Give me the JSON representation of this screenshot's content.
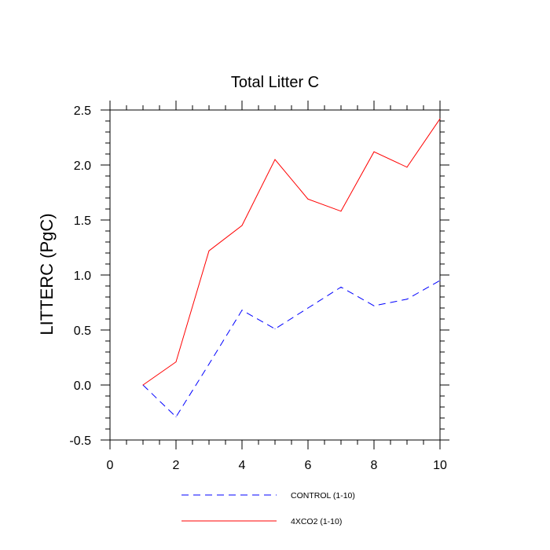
{
  "chart_data": {
    "type": "line",
    "title": "Total Litter C",
    "xlabel": "",
    "ylabel": "LITTERC  (PgC)",
    "xlim": [
      0,
      10
    ],
    "ylim": [
      -0.5,
      2.5
    ],
    "x_ticks": [
      "0",
      "2",
      "4",
      "6",
      "8",
      "10"
    ],
    "y_ticks": [
      "-0.5",
      "0.0",
      "0.5",
      "1.0",
      "1.5",
      "2.0",
      "2.5"
    ],
    "grid": false,
    "legend_position": "bottom",
    "series": [
      {
        "name": "CONTROL (1-10)",
        "color": "#0000ff",
        "line_style": "dashed",
        "x": [
          1,
          2,
          3,
          4,
          5,
          6,
          7,
          8,
          9,
          10
        ],
        "values": [
          0.0,
          -0.29,
          0.19,
          0.68,
          0.51,
          0.7,
          0.89,
          0.72,
          0.78,
          0.95
        ]
      },
      {
        "name": "4XCO2 (1-10)",
        "color": "#ff0000",
        "line_style": "solid",
        "x": [
          1,
          2,
          3,
          4,
          5,
          6,
          7,
          8,
          9,
          10
        ],
        "values": [
          0.0,
          0.21,
          1.22,
          1.45,
          2.05,
          1.69,
          1.58,
          2.12,
          1.98,
          2.42
        ]
      }
    ]
  }
}
